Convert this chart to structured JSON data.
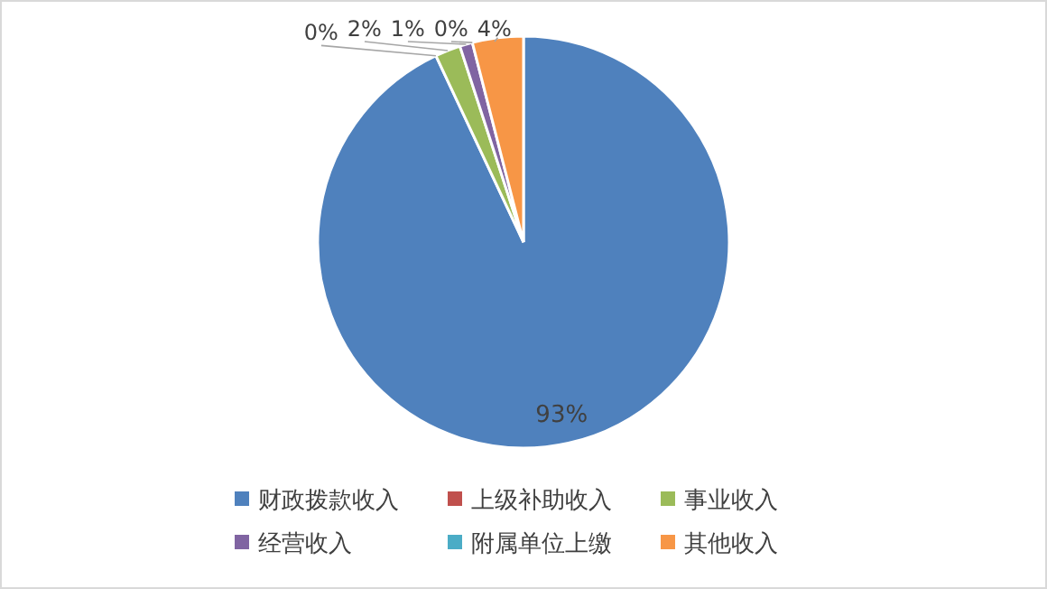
{
  "chart_data": {
    "type": "pie",
    "categories": [
      "财政拨款收入",
      "上级补助收入",
      "事业收入",
      "经营收入",
      "附属单位上缴",
      "其他收入"
    ],
    "values": [
      93,
      0,
      2,
      1,
      0,
      4
    ],
    "colors": [
      "#4f81bd",
      "#c0504d",
      "#9bbb59",
      "#8064a2",
      "#4bacc6",
      "#f79646"
    ],
    "value_labels": [
      "93%",
      "0%",
      "2%",
      "1%",
      "0%",
      "4%"
    ],
    "legend": "bottom"
  }
}
